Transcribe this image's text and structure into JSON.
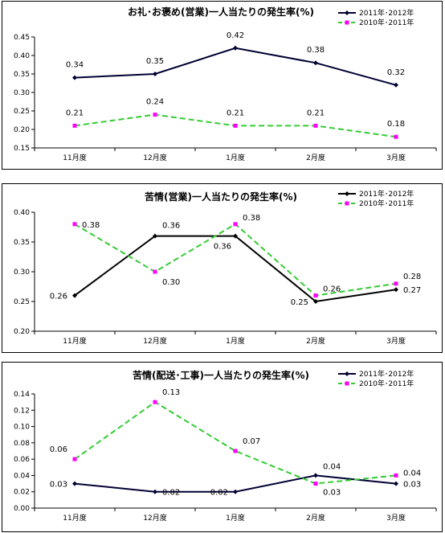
{
  "charts": [
    {
      "type": "line",
      "title": "お礼･お褒め(営業)一人当たりの発生率(%)",
      "categories": [
        "11月度",
        "12月度",
        "1月度",
        "2月度",
        "3月度"
      ],
      "ylim": [
        0.15,
        0.45
      ],
      "yticks": [
        "0.15",
        "0.20",
        "0.25",
        "0.30",
        "0.35",
        "0.40",
        "0.45"
      ],
      "legend": "top-right",
      "series": [
        {
          "name": "2011年･2012年",
          "values": [
            0.34,
            0.35,
            0.42,
            0.38,
            0.32
          ],
          "labels": [
            "0.34",
            "0.35",
            "0.42",
            "0.38",
            "0.32"
          ],
          "color": "#000033",
          "dash": false,
          "marker": "diamond"
        },
        {
          "name": "2010年･2011年",
          "values": [
            0.21,
            0.24,
            0.21,
            0.21,
            0.18
          ],
          "labels": [
            "0.21",
            "0.24",
            "0.21",
            "0.21",
            "0.18"
          ],
          "color": "#33cc33",
          "dash": true,
          "marker": "square"
        }
      ]
    },
    {
      "type": "line",
      "title": "苦情(営業)一人当たりの発生率(%)",
      "categories": [
        "11月度",
        "12月度",
        "1月度",
        "2月度",
        "3月度"
      ],
      "ylim": [
        0.2,
        0.4
      ],
      "yticks": [
        "0.20",
        "0.25",
        "0.30",
        "0.35",
        "0.40"
      ],
      "legend": "top-right",
      "series": [
        {
          "name": "2011年･2012年",
          "values": [
            0.26,
            0.36,
            0.36,
            0.25,
            0.27
          ],
          "labels": [
            "0.26",
            "0.36",
            "0.36",
            "0.25",
            "0.27"
          ],
          "color": "#000000",
          "dash": false,
          "marker": "diamond"
        },
        {
          "name": "2010年･2011年",
          "values": [
            0.38,
            0.3,
            0.38,
            0.26,
            0.28
          ],
          "labels": [
            "0.38",
            "0.30",
            "0.38",
            "0.26",
            "0.28"
          ],
          "color": "#33cc33",
          "dash": true,
          "marker": "square"
        }
      ]
    },
    {
      "type": "line",
      "title": "苦情(配送･工事)一人当たりの発生率(%)",
      "categories": [
        "11月度",
        "12月度",
        "1月度",
        "2月度",
        "3月度"
      ],
      "ylim": [
        0.0,
        0.14
      ],
      "yticks": [
        "0.00",
        "0.02",
        "0.04",
        "0.06",
        "0.08",
        "0.10",
        "0.12",
        "0.14"
      ],
      "legend": "top-right",
      "series": [
        {
          "name": "2011年･2012年",
          "values": [
            0.03,
            0.02,
            0.02,
            0.04,
            0.03
          ],
          "labels": [
            "0.03",
            "0.02",
            "0.02",
            "0.04",
            "0.03"
          ],
          "color": "#000033",
          "dash": false,
          "marker": "diamond"
        },
        {
          "name": "2010年･2011年",
          "values": [
            0.06,
            0.13,
            0.07,
            0.03,
            0.04
          ],
          "labels": [
            "0.06",
            "0.13",
            "0.07",
            "0.03",
            "0.04"
          ],
          "color": "#33cc33",
          "dash": true,
          "marker": "square"
        }
      ]
    }
  ]
}
